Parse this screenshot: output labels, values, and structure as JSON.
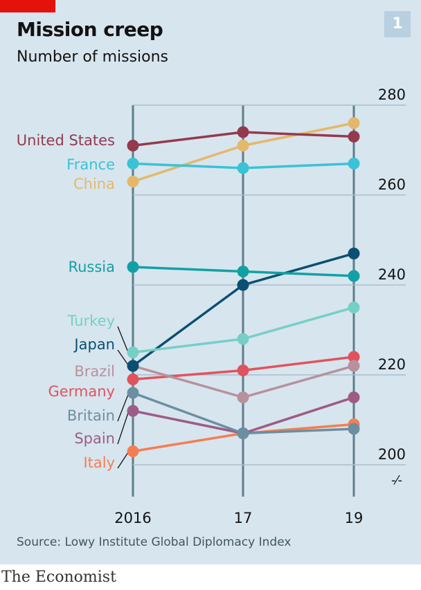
{
  "header": {
    "title": "Mission creep",
    "subtitle": "Number of missions",
    "badge": "1"
  },
  "footer": {
    "source": "Source: Lowy Institute Global Diplomacy Index",
    "brand": "The Economist"
  },
  "chart_data": {
    "type": "line",
    "title": "Mission creep",
    "subtitle": "Number of missions",
    "x": [
      "2016",
      "17",
      "19"
    ],
    "ylim": [
      200,
      280
    ],
    "yticks": [
      200,
      220,
      240,
      260,
      280
    ],
    "axis_break_symbol": "-⁄‐",
    "series": [
      {
        "name": "United States",
        "values": [
          271,
          274,
          273
        ],
        "color": "#943a4e"
      },
      {
        "name": "France",
        "values": [
          267,
          266,
          267
        ],
        "color": "#3ac2d6"
      },
      {
        "name": "China",
        "values": [
          263,
          271,
          276
        ],
        "color": "#e4b86a"
      },
      {
        "name": "Russia",
        "values": [
          244,
          243,
          242
        ],
        "color": "#13a0a5"
      },
      {
        "name": "Turkey",
        "values": [
          225,
          228,
          235
        ],
        "color": "#76cfc7"
      },
      {
        "name": "Japan",
        "values": [
          222,
          240,
          247
        ],
        "color": "#0b4f72"
      },
      {
        "name": "Brazil",
        "values": [
          222,
          215,
          222
        ],
        "color": "#b7919c"
      },
      {
        "name": "Germany",
        "values": [
          219,
          221,
          224
        ],
        "color": "#e0535e"
      },
      {
        "name": "Britain",
        "values": [
          216,
          207,
          208
        ],
        "color": "#6c8ea1"
      },
      {
        "name": "Spain",
        "values": [
          212,
          207,
          215
        ],
        "color": "#9c5c86"
      },
      {
        "name": "Italy",
        "values": [
          203,
          207,
          209
        ],
        "color": "#f47e53"
      }
    ]
  }
}
